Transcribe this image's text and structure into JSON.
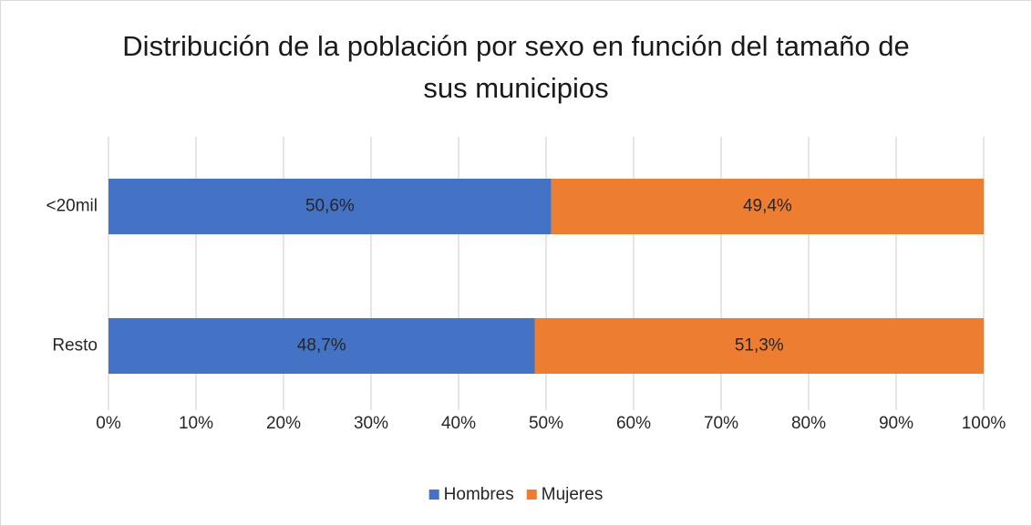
{
  "chart_data": {
    "type": "stacked_barh",
    "title": "Distribución de la población por sexo en función del tamaño de sus municipios",
    "categories": [
      "<20mil",
      "Resto"
    ],
    "series": [
      {
        "name": "Hombres",
        "color": "#4472c4",
        "values": [
          50.6,
          48.7
        ],
        "value_labels": [
          "50,6%",
          "48,7%"
        ]
      },
      {
        "name": "Mujeres",
        "color": "#ed7d31",
        "values": [
          49.4,
          51.3
        ],
        "value_labels": [
          "49,4%",
          "51,3%"
        ]
      }
    ],
    "xlim": [
      0,
      100
    ],
    "xticks": [
      {
        "value": 0,
        "label": "0%"
      },
      {
        "value": 10,
        "label": "10%"
      },
      {
        "value": 20,
        "label": "20%"
      },
      {
        "value": 30,
        "label": "30%"
      },
      {
        "value": 40,
        "label": "40%"
      },
      {
        "value": 50,
        "label": "50%"
      },
      {
        "value": 60,
        "label": "60%"
      },
      {
        "value": 70,
        "label": "70%"
      },
      {
        "value": 80,
        "label": "80%"
      },
      {
        "value": 90,
        "label": "90%"
      },
      {
        "value": 100,
        "label": "100%"
      }
    ],
    "grid": true,
    "legend": "bottom"
  }
}
